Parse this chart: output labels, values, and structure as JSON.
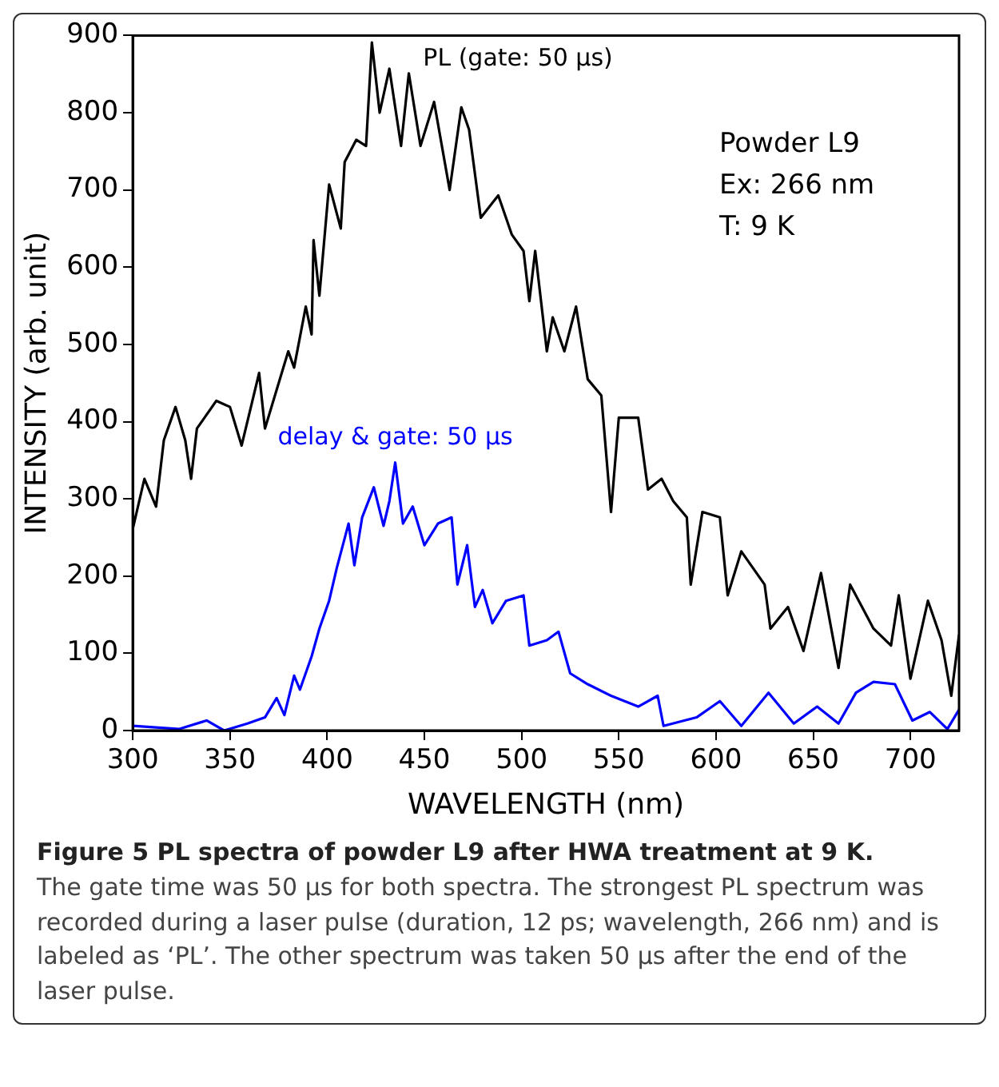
{
  "chart_data": {
    "type": "line",
    "title": "Figure 5 PL spectra of powder L9 after HWA treatment at 9 K.",
    "xlabel": "WAVELENGTH (nm)",
    "ylabel": "INTENSITY (arb. unit)",
    "xlim": [
      300,
      725
    ],
    "xticks": [
      300,
      350,
      400,
      450,
      500,
      550,
      600,
      650,
      700
    ],
    "ylim": [
      0,
      900
    ],
    "yticks": [
      0,
      100,
      200,
      300,
      400,
      500,
      600,
      700,
      800,
      900
    ],
    "grid": false,
    "legend": false,
    "marker": "none",
    "line_style": "solid",
    "series": [
      {
        "name": "PL (gate: 50 µs)",
        "color": "#000000",
        "x": [
          300,
          306,
          312,
          316,
          322,
          327,
          330,
          333,
          343,
          350,
          356,
          365,
          368,
          380,
          383,
          389,
          392,
          393,
          396,
          401,
          407,
          409,
          415,
          420,
          423,
          427,
          432,
          438,
          442,
          448,
          455,
          463,
          469,
          473,
          479,
          488,
          495,
          501,
          504,
          507,
          513,
          516,
          522,
          528,
          534,
          541,
          546,
          550,
          560,
          565,
          572,
          578,
          585,
          587,
          593,
          602,
          606,
          613,
          625,
          628,
          637,
          645,
          654,
          663,
          669,
          681,
          690,
          694,
          700,
          709,
          716,
          721,
          725
        ],
        "values": [
          261,
          326,
          290,
          376,
          419,
          376,
          326,
          391,
          427,
          419,
          369,
          463,
          391,
          491,
          470,
          549,
          513,
          635,
          563,
          707,
          650,
          736,
          765,
          757,
          891,
          800,
          857,
          757,
          851,
          757,
          814,
          700,
          807,
          778,
          664,
          693,
          642,
          621,
          556,
          621,
          491,
          535,
          491,
          549,
          455,
          434,
          283,
          405,
          405,
          312,
          326,
          297,
          276,
          189,
          283,
          276,
          175,
          232,
          189,
          132,
          160,
          103,
          204,
          81,
          189,
          132,
          110,
          175,
          67,
          168,
          117,
          45,
          124
        ]
      },
      {
        "name": "delay & gate: 50 µs",
        "color": "#0000ff",
        "x": [
          300,
          324,
          338,
          347,
          359,
          368,
          374,
          378,
          383,
          386,
          392,
          396,
          401,
          405,
          411,
          414,
          418,
          424,
          429,
          432,
          435,
          439,
          444,
          450,
          457,
          464,
          467,
          472,
          476,
          480,
          485,
          492,
          501,
          504,
          513,
          519,
          525,
          534,
          546,
          560,
          570,
          573,
          590,
          602,
          613,
          627,
          640,
          652,
          663,
          672,
          681,
          692,
          701,
          710,
          719,
          725
        ],
        "values": [
          6,
          2,
          13,
          0,
          9,
          17,
          42,
          20,
          71,
          53,
          96,
          132,
          168,
          211,
          268,
          214,
          276,
          315,
          265,
          297,
          347,
          268,
          290,
          240,
          268,
          276,
          189,
          240,
          160,
          182,
          139,
          168,
          175,
          110,
          117,
          128,
          74,
          60,
          45,
          31,
          45,
          6,
          17,
          38,
          6,
          49,
          9,
          31,
          9,
          49,
          63,
          60,
          13,
          24,
          2,
          27
        ]
      }
    ],
    "annotations": [
      "Powder L9",
      "Ex: 266 nm",
      "T: 9 K",
      "The gate time was 50 µs for both spectra. The strongest PL spectrum was recorded during a laser pulse (duration, 12 ps; wavelength, 266 nm) and is labeled as ‘PL’. The other spectrum was taken 50 µs after the end of the laser pulse."
    ]
  }
}
